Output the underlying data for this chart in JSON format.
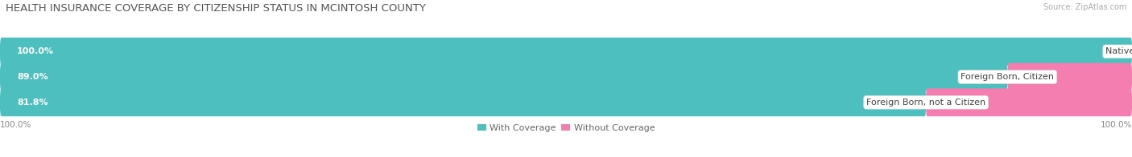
{
  "title": "HEALTH INSURANCE COVERAGE BY CITIZENSHIP STATUS IN MCINTOSH COUNTY",
  "source": "Source: ZipAtlas.com",
  "categories": [
    "Native Born",
    "Foreign Born, Citizen",
    "Foreign Born, not a Citizen"
  ],
  "with_coverage": [
    100.0,
    89.0,
    81.8
  ],
  "without_coverage": [
    0.0,
    11.0,
    18.2
  ],
  "color_with": "#4DBFBF",
  "color_without": "#F47EB0",
  "color_without_light": "#F9B8D4",
  "label_with": "With Coverage",
  "label_without": "Without Coverage",
  "bg_bar": "#EBEBEB",
  "x_left_label": "100.0%",
  "x_right_label": "100.0%",
  "title_fontsize": 9.5,
  "source_fontsize": 7,
  "bar_label_fontsize": 8,
  "category_fontsize": 8,
  "tick_fontsize": 7.5,
  "legend_fontsize": 8,
  "bar_height": 0.28,
  "bar_positions": [
    0.82,
    0.55,
    0.28
  ],
  "xlim_left": 0.0,
  "xlim_right": 100.0
}
